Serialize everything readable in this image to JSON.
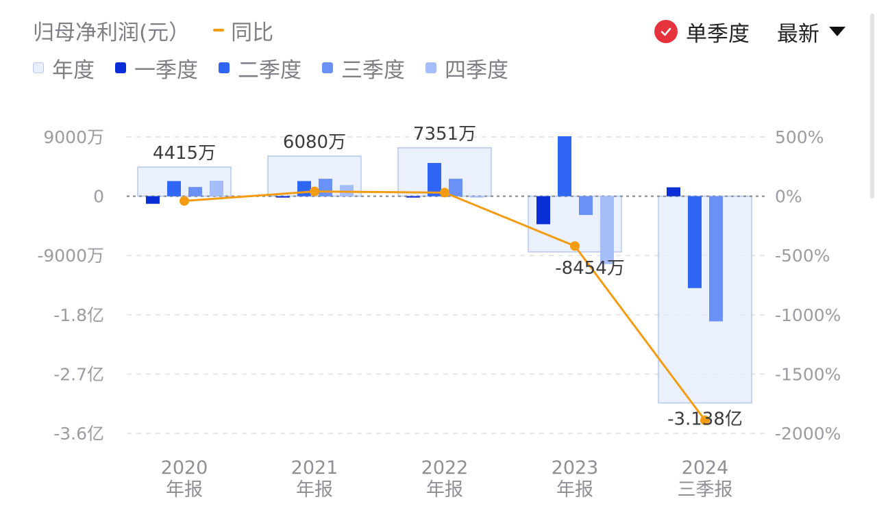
{
  "header": {
    "title": "归母净利润(元）",
    "yoy_label": "同比",
    "mode_label": "单季度",
    "latest_label": "最新"
  },
  "legend": [
    {
      "label": "年度",
      "color": "#e8eefb"
    },
    {
      "label": "一季度",
      "color": "#0a2fd6"
    },
    {
      "label": "二季度",
      "color": "#2f66f4"
    },
    {
      "label": "三季度",
      "color": "#6a92f6"
    },
    {
      "label": "四季度",
      "color": "#a5bdf8"
    }
  ],
  "colors": {
    "yoy_line": "#f39c12",
    "mode_check": "#e6323c"
  },
  "chart_data": {
    "type": "bar",
    "categories": [
      [
        "2020",
        "年报"
      ],
      [
        "2021",
        "年报"
      ],
      [
        "2022",
        "年报"
      ],
      [
        "2023",
        "年报"
      ],
      [
        "2024",
        "三季报"
      ]
    ],
    "annual": {
      "name": "年度",
      "values": [
        4415,
        6080,
        7351,
        -8454,
        -31380
      ],
      "labels": [
        "4415万",
        "6080万",
        "7351万",
        "-8454万",
        "-3.138亿"
      ]
    },
    "series": [
      {
        "name": "一季度",
        "values": [
          -1150,
          -150,
          -200,
          -4250,
          1350
        ]
      },
      {
        "name": "二季度",
        "values": [
          2300,
          2300,
          5050,
          9100,
          -13950
        ]
      },
      {
        "name": "三季度",
        "values": [
          1400,
          2650,
          2650,
          -2850,
          -19000
        ]
      },
      {
        "name": "四季度",
        "values": [
          2350,
          1700,
          -200,
          -10300,
          null
        ]
      }
    ],
    "yoy": {
      "name": "同比",
      "values": [
        -40,
        40,
        30,
        -420,
        -1890
      ]
    },
    "y_left": {
      "unit": "万",
      "range": [
        -36000,
        9000
      ],
      "ticks": [
        {
          "v": 9000,
          "t": "9000万"
        },
        {
          "v": 0,
          "t": "0"
        },
        {
          "v": -9000,
          "t": "-9000万"
        },
        {
          "v": -18000,
          "t": "-1.8亿"
        },
        {
          "v": -27000,
          "t": "-2.7亿"
        },
        {
          "v": -36000,
          "t": "-3.6亿"
        }
      ]
    },
    "y_right": {
      "unit": "%",
      "range": [
        -2000,
        500
      ],
      "ticks": [
        {
          "v": 500,
          "t": "500%"
        },
        {
          "v": 0,
          "t": "0%"
        },
        {
          "v": -500,
          "t": "-500%"
        },
        {
          "v": -1000,
          "t": "-1000%"
        },
        {
          "v": -1500,
          "t": "-1500%"
        },
        {
          "v": -2000,
          "t": "-2000%"
        }
      ]
    },
    "grid": true
  }
}
